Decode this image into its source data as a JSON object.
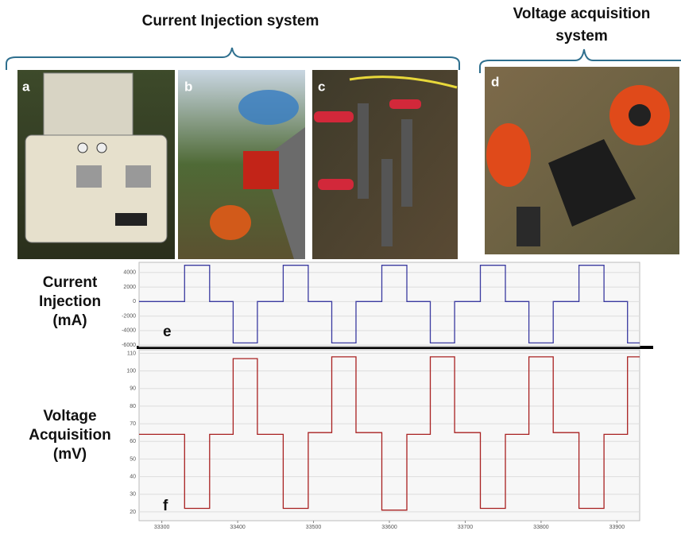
{
  "header": {
    "left_title": "Current Injection system",
    "right_title": [
      "Voltage acquisition",
      "system"
    ]
  },
  "photos": [
    {
      "label": "a"
    },
    {
      "label": "b"
    },
    {
      "label": "c"
    },
    {
      "label": "d"
    }
  ],
  "chart_data": [
    {
      "type": "line",
      "ylabel": [
        "Current",
        "Injection",
        "(mA)"
      ],
      "annotation": "e",
      "color": "#3a3aa0",
      "x": [
        33270,
        33330,
        33330,
        33363,
        33363,
        33394,
        33394,
        33426,
        33426,
        33460,
        33460,
        33493,
        33493,
        33524,
        33524,
        33556,
        33556,
        33590,
        33590,
        33623,
        33623,
        33654,
        33654,
        33686,
        33686,
        33720,
        33720,
        33753,
        33753,
        33784,
        33784,
        33816,
        33816,
        33850,
        33850,
        33883,
        33883,
        33914,
        33914,
        33930
      ],
      "values": [
        0,
        0,
        5000,
        5000,
        0,
        0,
        -5700,
        -5700,
        0,
        0,
        5000,
        5000,
        0,
        0,
        -5700,
        -5700,
        0,
        0,
        5000,
        5000,
        0,
        0,
        -5700,
        -5700,
        0,
        0,
        5000,
        5000,
        0,
        0,
        -5700,
        -5700,
        0,
        0,
        5000,
        5000,
        0,
        0,
        -5700,
        -5700
      ],
      "xlim": [
        33270,
        33930
      ],
      "ylim": [
        -6200,
        5400
      ],
      "yticks": [
        -6000,
        -4000,
        -2000,
        0,
        2000,
        4000
      ],
      "grid": true
    },
    {
      "type": "line",
      "ylabel": [
        "Voltage",
        "Acquisition",
        "(mV)"
      ],
      "annotation": "f",
      "color": "#a82020",
      "x": [
        33270,
        33330,
        33330,
        33363,
        33363,
        33394,
        33394,
        33426,
        33426,
        33460,
        33460,
        33493,
        33493,
        33524,
        33524,
        33556,
        33556,
        33590,
        33590,
        33623,
        33623,
        33654,
        33654,
        33686,
        33686,
        33720,
        33720,
        33753,
        33753,
        33784,
        33784,
        33816,
        33816,
        33850,
        33850,
        33883,
        33883,
        33914,
        33914,
        33930
      ],
      "values": [
        64,
        64,
        22,
        22,
        64,
        64,
        107,
        107,
        64,
        64,
        22,
        22,
        65,
        65,
        108,
        108,
        65,
        65,
        21,
        21,
        64,
        64,
        108,
        108,
        65,
        65,
        22,
        22,
        64,
        64,
        108,
        108,
        65,
        65,
        22,
        22,
        64,
        64,
        108,
        108
      ],
      "xlim": [
        33270,
        33930
      ],
      "ylim": [
        15,
        112
      ],
      "yticks": [
        20,
        30,
        40,
        50,
        60,
        70,
        80,
        90,
        100,
        110
      ],
      "xticks": [
        33300,
        33400,
        33500,
        33600,
        33700,
        33800,
        33900
      ],
      "grid": true
    }
  ]
}
